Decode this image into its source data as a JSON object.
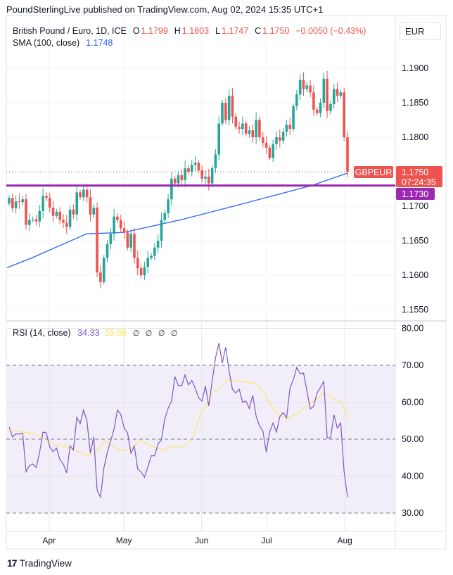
{
  "header": {
    "published": "PoundSterlingLive published on TradingView.com, Aug 02, 2024 15:35 UTC+1",
    "symbol": "British Pound / Euro, 1D, ICE",
    "o_label": "O",
    "o": "1.1799",
    "h_label": "H",
    "h": "1.1803",
    "l_label": "L",
    "l": "1.1747",
    "c_label": "C",
    "c": "1.1750",
    "change": "−0.0050 (−0.43%)",
    "sma_label": "SMA (100, close)",
    "sma_value": "1.1748",
    "currency_button": "EUR"
  },
  "rsi_legend": {
    "label": "RSI (14, close)",
    "rsi": "34.33",
    "ma": "55.66",
    "extra": [
      "∅",
      "∅",
      "∅",
      "∅"
    ]
  },
  "price_labels": {
    "symbol": "GBPEUR",
    "last": "1.1750",
    "countdown": "07:24:35",
    "level": "1.1730"
  },
  "footer": {
    "brand": "TradingView"
  },
  "colors": {
    "up": "#26a69a",
    "down": "#ef5350",
    "sma": "#2962ff",
    "level": "#9c27b0",
    "rsi": "#7e57c2",
    "rsi_ma": "#fbe54b"
  },
  "chart_data": [
    {
      "type": "candlestick",
      "title": "British Pound / Euro, 1D, ICE",
      "ylim": [
        1.153,
        1.1935
      ],
      "y_ticks": [
        "1.1900",
        "1.1850",
        "1.1800",
        "1.1700",
        "1.1650",
        "1.1600",
        "1.1550"
      ],
      "x_ticks": [
        {
          "label": "Apr",
          "index": 12.8
        },
        {
          "label": "May",
          "index": 34.9
        },
        {
          "label": "Jun",
          "index": 57.9
        },
        {
          "label": "Jul",
          "index": 77.1
        },
        {
          "label": "Aug",
          "index": 100.2
        }
      ],
      "first_open": 1.1704,
      "closes": [
        1.1712,
        1.1697,
        1.1707,
        1.1706,
        1.171,
        1.1673,
        1.168,
        1.1681,
        1.1678,
        1.1693,
        1.1715,
        1.1712,
        1.1698,
        1.1686,
        1.1692,
        1.168,
        1.1676,
        1.167,
        1.1695,
        1.1688,
        1.172,
        1.1713,
        1.1724,
        1.1713,
        1.1688,
        1.1698,
        1.1604,
        1.159,
        1.1625,
        1.1645,
        1.166,
        1.1685,
        1.168,
        1.1668,
        1.1662,
        1.164,
        1.166,
        1.1625,
        1.161,
        1.16,
        1.1612,
        1.1625,
        1.1628,
        1.164,
        1.165,
        1.168,
        1.169,
        1.171,
        1.174,
        1.1733,
        1.1745,
        1.1738,
        1.1755,
        1.175,
        1.176,
        1.1763,
        1.1752,
        1.174,
        1.1743,
        1.1733,
        1.1755,
        1.1775,
        1.182,
        1.185,
        1.1825,
        1.186,
        1.183,
        1.1815,
        1.1812,
        1.182,
        1.1805,
        1.181,
        1.18,
        1.1825,
        1.18,
        1.1792,
        1.1785,
        1.177,
        1.179,
        1.18,
        1.1795,
        1.1808,
        1.1818,
        1.1812,
        1.1845,
        1.1862,
        1.1883,
        1.187,
        1.1875,
        1.1865,
        1.184,
        1.1835,
        1.185,
        1.1885,
        1.1838,
        1.1848,
        1.187,
        1.186,
        1.1865,
        1.18,
        1.175
      ],
      "sma_100": [
        [
          0.4,
          1.1611
        ],
        [
          7.2,
          1.1624
        ],
        [
          23.9,
          1.166
        ],
        [
          34.9,
          1.1662
        ],
        [
          52.3,
          1.1681
        ],
        [
          70.4,
          1.1704
        ],
        [
          90.4,
          1.173
        ],
        [
          101,
          1.1748
        ]
      ],
      "horizontal_level": 1.173,
      "last_price": 1.175
    },
    {
      "type": "line",
      "title": "RSI (14, close)",
      "ylim": [
        25,
        82
      ],
      "y_ticks": [
        "80.00",
        "70.00",
        "60.00",
        "50.00",
        "40.00",
        "30.00"
      ],
      "bands": [
        70,
        50,
        30
      ],
      "rsi": [
        53.3,
        50.6,
        51.4,
        51.4,
        51.6,
        41.2,
        42.8,
        43.3,
        42.3,
        46.4,
        51.9,
        51.7,
        47.9,
        46.6,
        47.6,
        44.4,
        43.3,
        40.9,
        48.2,
        47.1,
        55.9,
        54.2,
        57.9,
        54.9,
        46.2,
        50.6,
        36.2,
        34.3,
        42.2,
        46.4,
        49.5,
        52.7,
        57.9,
        56.7,
        53.0,
        51.7,
        46.2,
        48.1,
        41.9,
        41.1,
        39.7,
        42.5,
        45.5,
        45.5,
        48.7,
        49.8,
        55.5,
        58.4,
        60.3,
        66.9,
        64.5,
        64.5,
        67.4,
        64.7,
        65.9,
        63.8,
        61.2,
        60.3,
        64.4,
        59.0,
        65.7,
        72.0,
        76.0,
        70.6,
        74.9,
        68.5,
        63.5,
        62.5,
        63.5,
        60.0,
        60.3,
        58.3,
        61.9,
        56.2,
        53.6,
        52.2,
        46.5,
        52.0,
        54.4,
        51.9,
        56.1,
        57.2,
        55.8,
        63.8,
        66.1,
        69.4,
        67.7,
        67.9,
        63.1,
        58.2,
        58.9,
        62.5,
        64.0,
        65.6,
        50.3,
        50.4,
        56.6,
        53.0,
        54.4,
        41.2,
        34.33
      ],
      "rsi_ma": [
        [
          0.4,
          52.0
        ],
        [
          3.9,
          52.0
        ],
        [
          8.1,
          51.6
        ],
        [
          11.1,
          50.2
        ],
        [
          14.3,
          48.5
        ],
        [
          18.0,
          47.9
        ],
        [
          23.9,
          45.7
        ],
        [
          26.0,
          45.8
        ],
        [
          29.1,
          49.5
        ],
        [
          34.1,
          46.8
        ],
        [
          36.8,
          47.5
        ],
        [
          39.9,
          49.6
        ],
        [
          42.6,
          48.2
        ],
        [
          46.7,
          47.0
        ],
        [
          48.8,
          48.0
        ],
        [
          51.7,
          47.7
        ],
        [
          54.4,
          49.2
        ],
        [
          55.9,
          52.0
        ],
        [
          57.5,
          56.8
        ],
        [
          59.2,
          59.0
        ],
        [
          61.3,
          62.8
        ],
        [
          63.4,
          63.8
        ],
        [
          65.4,
          66.1
        ],
        [
          68.4,
          65.8
        ],
        [
          74.2,
          65.0
        ],
        [
          75.2,
          64.1
        ],
        [
          77.3,
          60.8
        ],
        [
          80.0,
          57.0
        ],
        [
          83.1,
          55.5
        ],
        [
          86.2,
          57.0
        ],
        [
          89.1,
          59.0
        ],
        [
          92.3,
          61.2
        ],
        [
          93.9,
          62.4
        ],
        [
          96.0,
          61.6
        ],
        [
          99.1,
          60.0
        ],
        [
          101,
          55.66
        ]
      ]
    }
  ]
}
